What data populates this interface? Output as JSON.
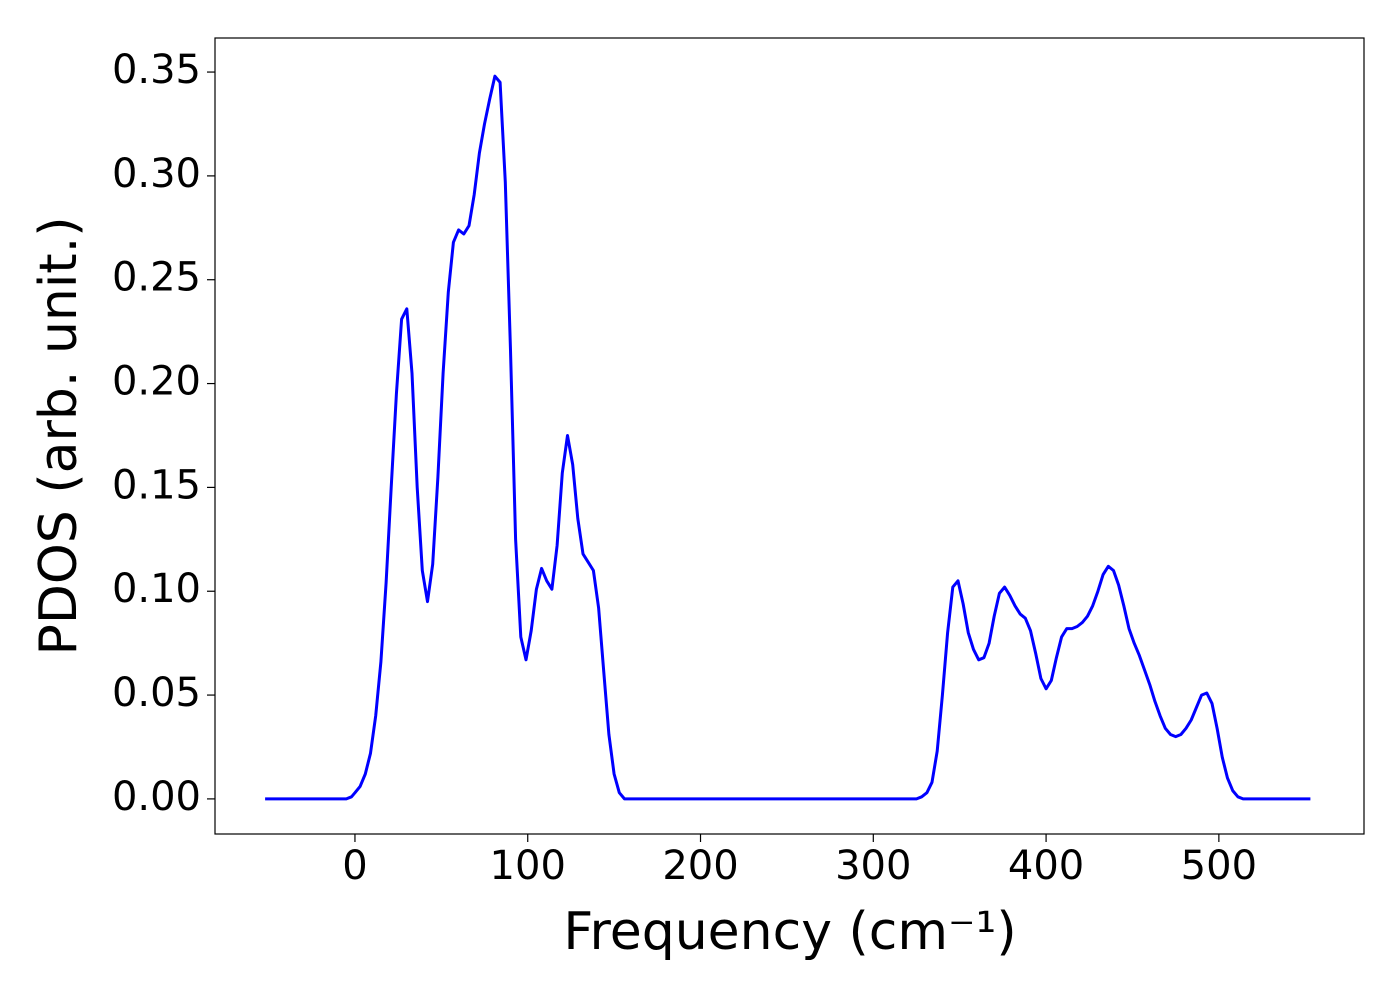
{
  "chart_data": {
    "type": "line",
    "xlabel": "Frequency (cm⁻¹)",
    "ylabel": "PDOS (arb. unit.)",
    "xlim": [
      -81,
      584
    ],
    "ylim": [
      -0.0169,
      0.3664
    ],
    "xticks": [
      0,
      100,
      200,
      300,
      400,
      500
    ],
    "yticks": [
      {
        "value": 0,
        "label": "0.00"
      },
      {
        "value": 0.05,
        "label": "0.05"
      },
      {
        "value": 0.1,
        "label": "0.10"
      },
      {
        "value": 0.15,
        "label": "0.15"
      },
      {
        "value": 0.2,
        "label": "0.20"
      },
      {
        "value": 0.25,
        "label": "0.25"
      },
      {
        "value": 0.3,
        "label": "0.30"
      },
      {
        "value": 0.35,
        "label": "0.35"
      }
    ],
    "x": [
      -52,
      -5,
      -2,
      0,
      3,
      6,
      9,
      12,
      15,
      18,
      21,
      24,
      27,
      30,
      33,
      36,
      39,
      42,
      45,
      48,
      51,
      54,
      57,
      60,
      63,
      66,
      69,
      72,
      75,
      78,
      81,
      84,
      87,
      90,
      93,
      96,
      99,
      102,
      105,
      108,
      111,
      114,
      117,
      120,
      123,
      126,
      129,
      132,
      135,
      138,
      141,
      144,
      147,
      150,
      153,
      156,
      159,
      325,
      328,
      331,
      334,
      337,
      340,
      343,
      346,
      349,
      352,
      355,
      358,
      361,
      364,
      367,
      370,
      373,
      376,
      379,
      382,
      385,
      388,
      391,
      394,
      397,
      400,
      403,
      406,
      409,
      412,
      415,
      418,
      421,
      424,
      427,
      430,
      433,
      436,
      439,
      442,
      445,
      448,
      451,
      454,
      457,
      460,
      463,
      466,
      469,
      472,
      475,
      478,
      481,
      484,
      487,
      490,
      493,
      496,
      499,
      502,
      505,
      508,
      511,
      514,
      553
    ],
    "series": [
      {
        "color": "#0000ff",
        "values": [
          0,
          0,
          0.001,
          0.003,
          0.006,
          0.012,
          0.022,
          0.04,
          0.066,
          0.104,
          0.15,
          0.195,
          0.231,
          0.236,
          0.205,
          0.15,
          0.11,
          0.095,
          0.113,
          0.155,
          0.205,
          0.244,
          0.268,
          0.274,
          0.272,
          0.276,
          0.291,
          0.311,
          0.325,
          0.337,
          0.348,
          0.345,
          0.297,
          0.216,
          0.125,
          0.078,
          0.067,
          0.081,
          0.101,
          0.111,
          0.105,
          0.101,
          0.122,
          0.157,
          0.175,
          0.161,
          0.135,
          0.118,
          0.114,
          0.11,
          0.092,
          0.061,
          0.031,
          0.012,
          0.003,
          0,
          0,
          0,
          0.001,
          0.003,
          0.008,
          0.023,
          0.05,
          0.08,
          0.102,
          0.105,
          0.094,
          0.08,
          0.072,
          0.067,
          0.068,
          0.075,
          0.088,
          0.099,
          0.102,
          0.098,
          0.093,
          0.089,
          0.087,
          0.081,
          0.07,
          0.058,
          0.053,
          0.057,
          0.068,
          0.078,
          0.082,
          0.082,
          0.083,
          0.085,
          0.088,
          0.093,
          0.1,
          0.108,
          0.112,
          0.11,
          0.103,
          0.093,
          0.082,
          0.075,
          0.069,
          0.062,
          0.055,
          0.047,
          0.04,
          0.034,
          0.031,
          0.03,
          0.031,
          0.034,
          0.038,
          0.044,
          0.05,
          0.051,
          0.046,
          0.034,
          0.02,
          0.01,
          0.004,
          0.001,
          0,
          0
        ]
      }
    ]
  }
}
